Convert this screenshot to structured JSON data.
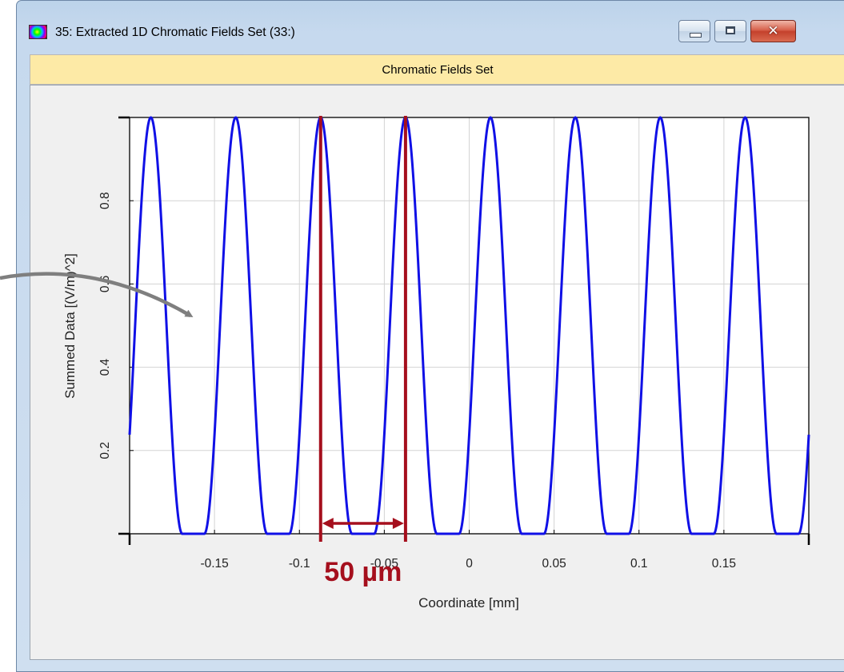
{
  "window": {
    "title": "35: Extracted 1D Chromatic Fields Set (33:)",
    "header": "Chromatic Fields Set",
    "icon": "spectrum-app-icon",
    "controls": [
      "minimize-icon",
      "maximize-icon",
      "close-icon"
    ]
  },
  "colors": {
    "series": "#1010e6",
    "annotation": "#a50f1d",
    "pointer_arrow": "#7f7f7f",
    "header_bg": "#fdeaa6"
  },
  "chart_data": {
    "type": "line",
    "title": "",
    "xlabel": "Coordinate [mm]",
    "ylabel": "Summed Data [(V/m)^2]",
    "xlim": [
      -0.2,
      0.2
    ],
    "ylim": [
      0,
      1
    ],
    "xticks": [
      -0.15,
      -0.1,
      -0.05,
      0,
      0.05,
      0.1,
      0.15
    ],
    "xtick_labels": [
      "-0.15",
      "-0.1",
      "-0.05",
      "0",
      "0.05",
      "0.1",
      "0.15"
    ],
    "yticks": [
      0.2,
      0.4,
      0.6,
      0.8
    ],
    "ytick_labels": [
      "0.2",
      "0.4",
      "0.6",
      "0.8"
    ],
    "grid": true,
    "series": [
      {
        "function": "fringe",
        "period": 0.05,
        "peak_positions": [
          -0.1875,
          -0.1375,
          -0.0875,
          -0.0375,
          0.0125,
          0.0625,
          0.1125,
          0.1625
        ],
        "peak_value": 1,
        "min_value": 0,
        "x": [
          -0.2,
          -0.1875,
          -0.175,
          -0.1625,
          -0.15,
          -0.1375,
          -0.125,
          -0.1125,
          -0.1,
          -0.0875,
          -0.075,
          -0.0625,
          -0.05,
          -0.0375,
          -0.025,
          -0.0125,
          0,
          0.0125,
          0.025,
          0.0375,
          0.05,
          0.0625,
          0.075,
          0.0875,
          0.1,
          0.1125,
          0.125,
          0.1375,
          0.15,
          0.1625,
          0.175,
          0.1875,
          0.2
        ],
        "y": [
          0.25,
          1,
          0.35,
          0,
          0.35,
          1,
          0.35,
          0,
          0.35,
          1,
          0.35,
          0,
          0.35,
          1,
          0.35,
          0,
          0.35,
          1,
          0.35,
          0,
          0.35,
          1,
          0.35,
          0,
          0.35,
          1,
          0.35,
          0,
          0.35,
          1,
          0.35,
          0,
          0.23
        ]
      }
    ],
    "annotations": [
      {
        "type": "period-measure",
        "x_start": -0.0875,
        "x_end": -0.0375,
        "label": "50 µm"
      }
    ]
  }
}
